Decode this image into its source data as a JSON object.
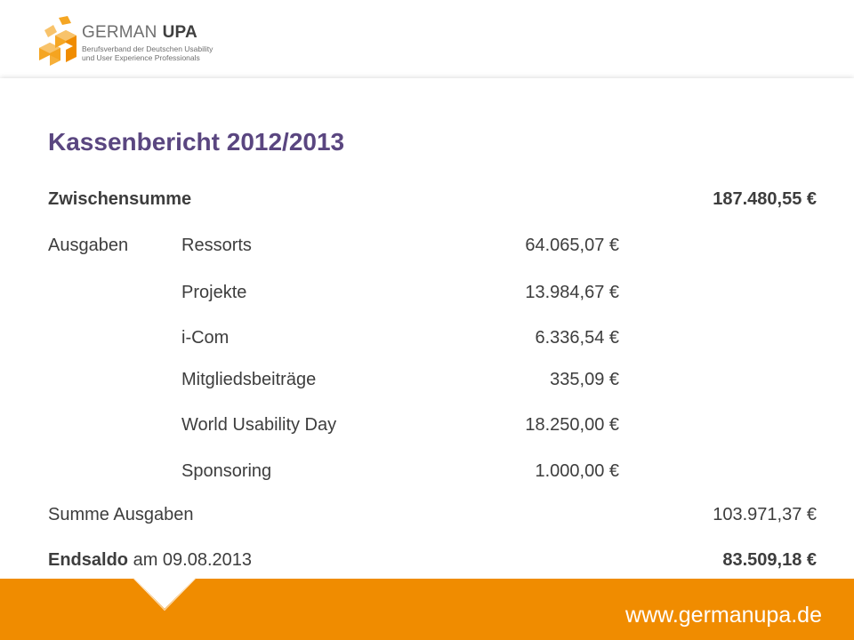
{
  "brand": {
    "name_part1": "GERMAN",
    "name_part2": "UPA",
    "tagline_line1": "Berufsverband der Deutschen Usability",
    "tagline_line2": "und User Experience Professionals",
    "accent_color": "#f08c00",
    "title_color": "#5a4680"
  },
  "report": {
    "title": "Kassenbericht 2012/2013",
    "zwischensumme": {
      "label": "Zwischensumme",
      "amount": "187.480,55 €"
    },
    "ausgaben": {
      "label": "Ausgaben",
      "items": [
        {
          "name": "Ressorts",
          "amount": "64.065,07 €"
        },
        {
          "name": "Projekte",
          "amount": "13.984,67 €"
        },
        {
          "name": "i-Com",
          "amount": "6.336,54 €"
        },
        {
          "name": "Mitgliedsbeiträge",
          "amount": "335,09 €"
        },
        {
          "name": "World Usability Day",
          "amount": "18.250,00 €"
        },
        {
          "name": "Sponsoring",
          "amount": "1.000,00 €"
        }
      ]
    },
    "summe_ausgaben": {
      "label": "Summe Ausgaben",
      "amount": "103.971,37 €"
    },
    "endsaldo": {
      "label_bold": "Endsaldo",
      "label_rest": " am 09.08.2013",
      "amount": "83.509,18 €"
    }
  },
  "footer": {
    "url": "www.germanupa.de"
  }
}
